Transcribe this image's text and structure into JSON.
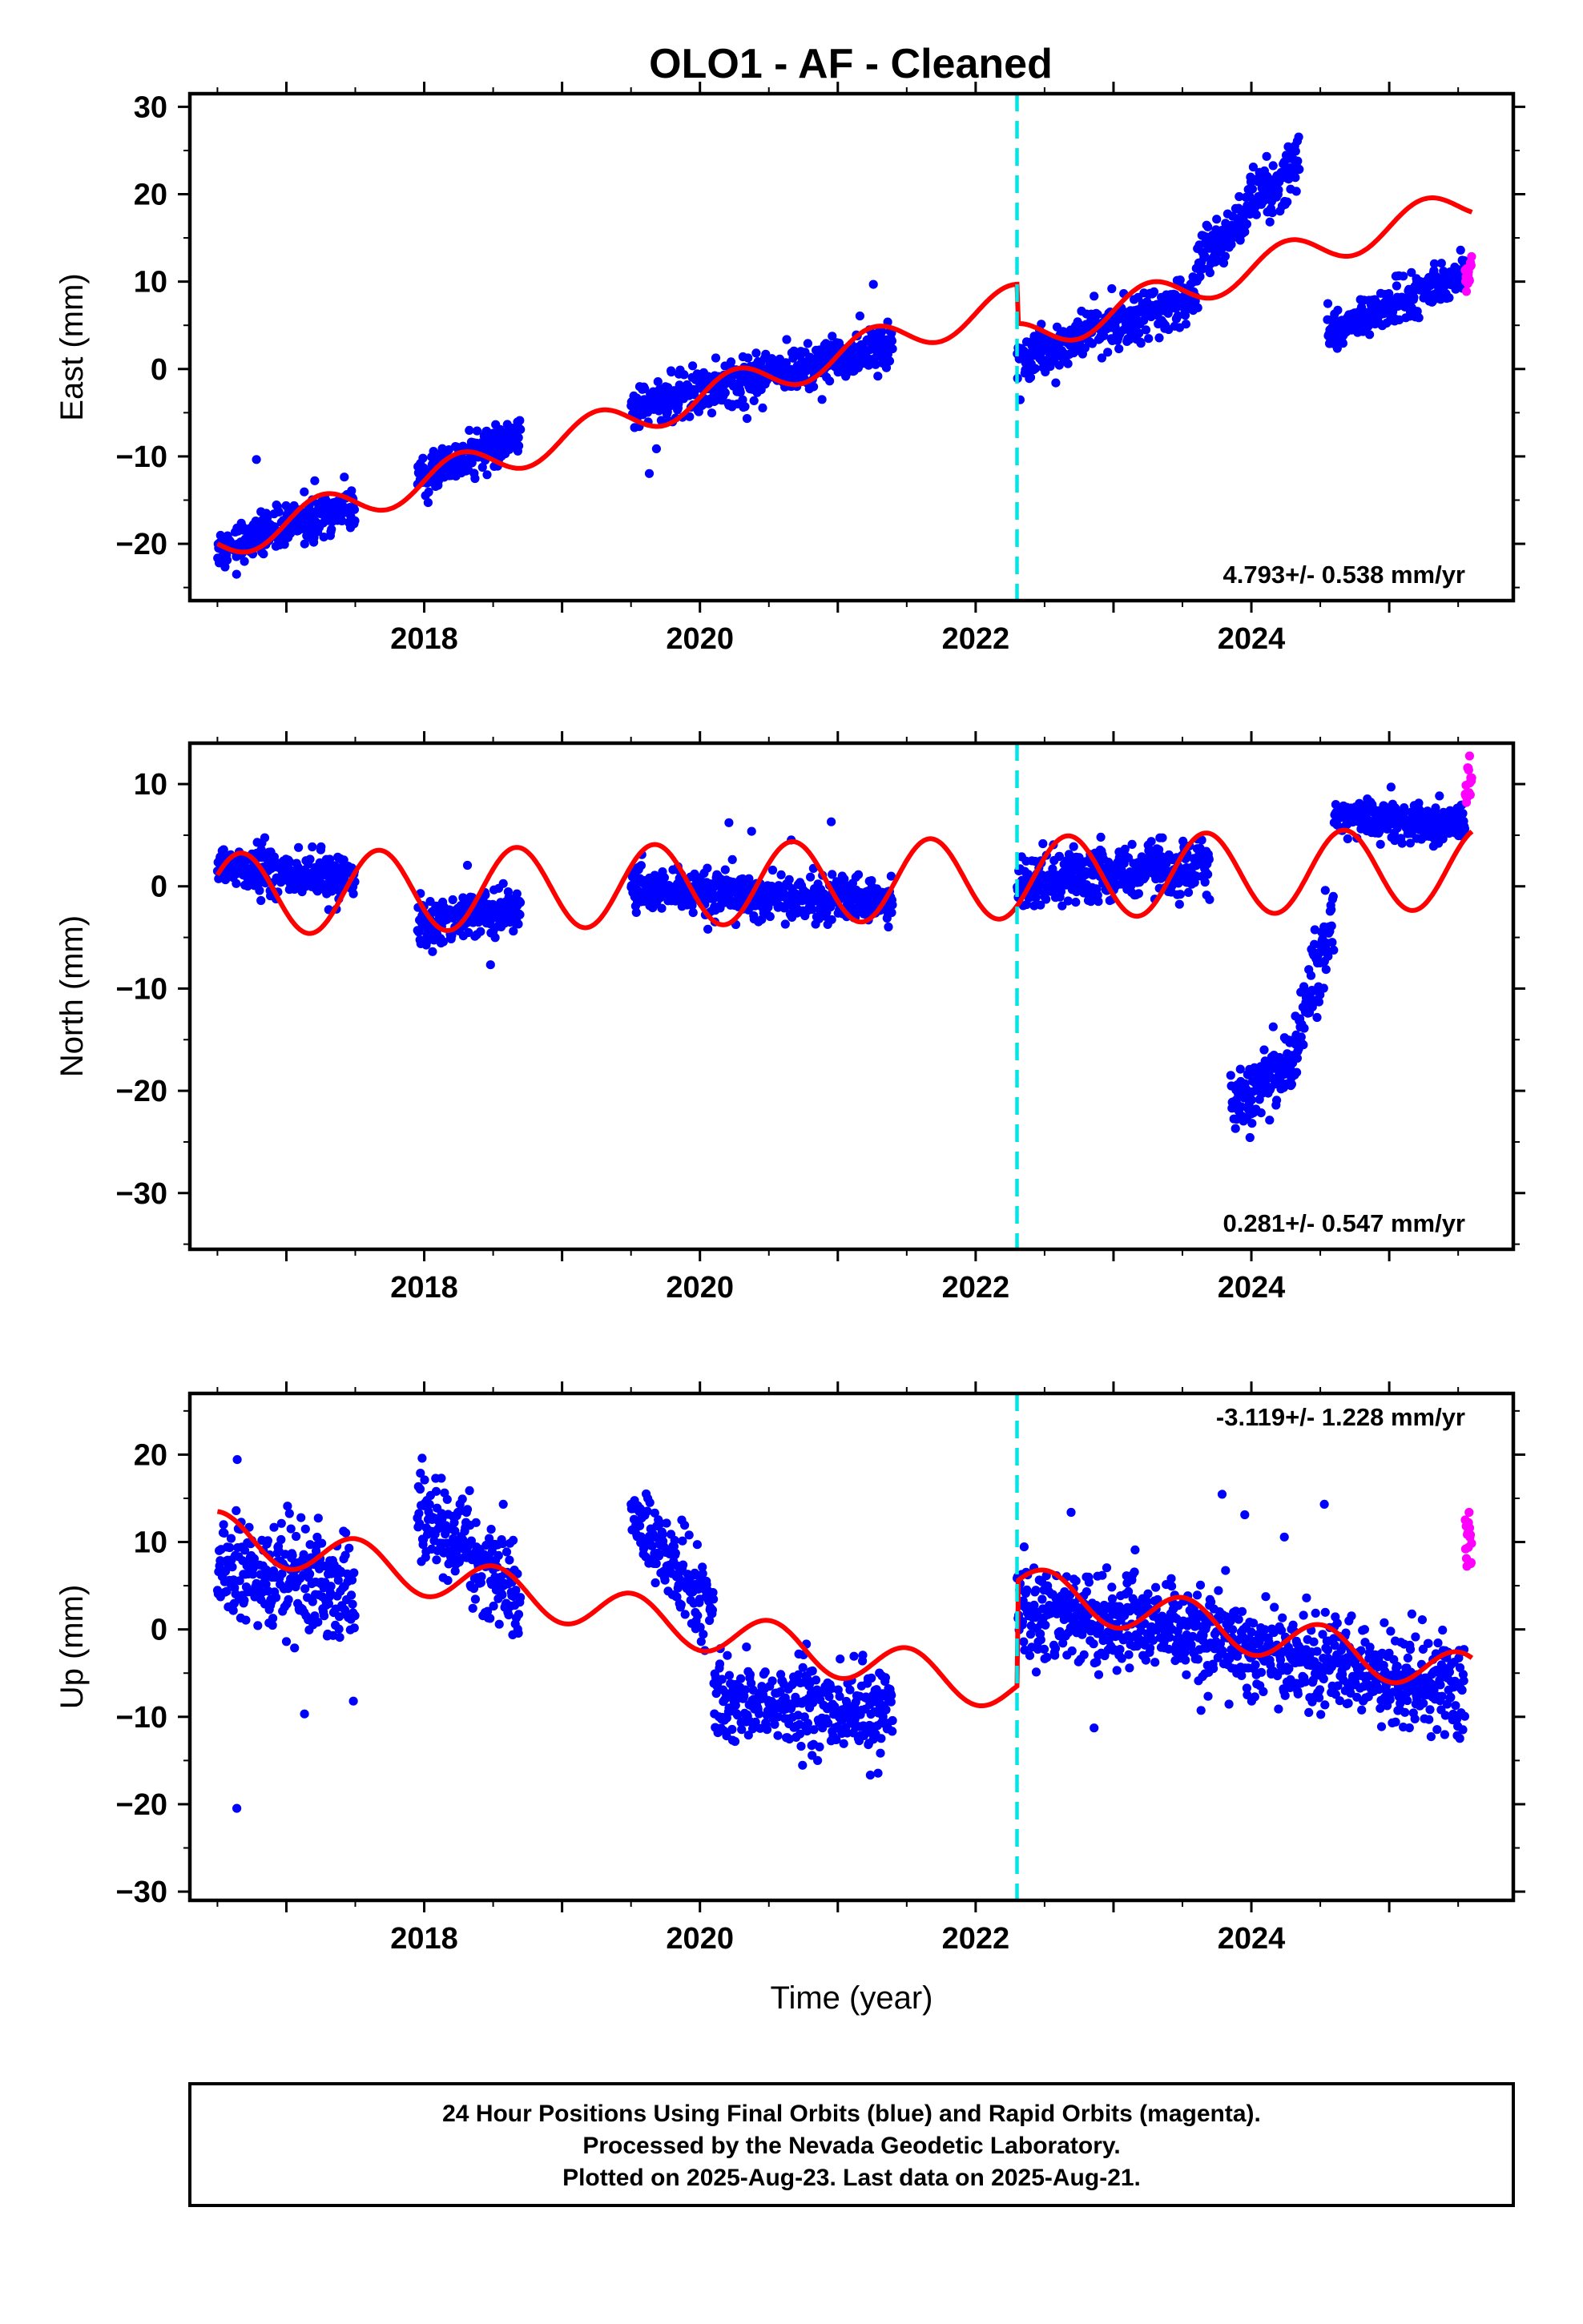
{
  "title": "OLO1  - AF - Cleaned",
  "footer": {
    "lines": [
      "24 Hour Positions Using Final Orbits (blue) and Rapid Orbits (magenta).",
      "Processed by the Nevada Geodetic Laboratory.",
      "Plotted on 2025-Aug-23. Last data on 2025-Aug-21."
    ]
  },
  "colors": {
    "final_points": "#0000ff",
    "rapid_points": "#ff00ff",
    "model_line": "#ff0000",
    "event_line": "#00e5e5",
    "frame": "#000000"
  },
  "chart_data": [
    {
      "type": "scatter",
      "id": "east",
      "ylabel": "East (mm)",
      "xlim": [
        2016.3,
        2025.9
      ],
      "ylim": [
        -26.5,
        31.5
      ],
      "xticks": [
        2018,
        2020,
        2022,
        2024
      ],
      "xminor": [
        2017,
        2019,
        2021,
        2023,
        2025
      ],
      "yticks": [
        -20,
        -10,
        0,
        10,
        20,
        30
      ],
      "event_x": 2022.3,
      "rate_text": "4.793+/- 0.538 mm/yr",
      "rate_position": "bottom-right",
      "series": [
        {
          "role": "final",
          "segments": [
            {
              "x": [
                2016.5,
                2017.5
              ],
              "y": [
                -20.5,
                -15.5
              ],
              "spread": 2.0
            },
            {
              "x": [
                2017.95,
                2018.7
              ],
              "y": [
                -12.5,
                -7.5
              ],
              "spread": 1.8
            },
            {
              "x": [
                2019.5,
                2021.4
              ],
              "y": [
                -4.5,
                2.5
              ],
              "spread": 2.3
            },
            {
              "x": [
                2022.3,
                2023.6
              ],
              "y": [
                1.0,
                8.5
              ],
              "spread": 2.3
            },
            {
              "x": [
                2023.6,
                2024.35
              ],
              "y": [
                12.0,
                24.0
              ],
              "spread": 3.0
            },
            {
              "x": [
                2024.55,
                2025.55
              ],
              "y": [
                4.0,
                11.0
              ],
              "spread": 2.0
            }
          ]
        },
        {
          "role": "rapid",
          "segments": [
            {
              "x": [
                2025.55,
                2025.6
              ],
              "y": [
                10.0,
                12.5
              ],
              "spread": 2.5
            }
          ]
        }
      ],
      "model": {
        "x0": 2016.5,
        "offset": -20.0,
        "rate": 4.793,
        "annual_amp": 2.0,
        "annual_phase": 3.14,
        "steps": [
          {
            "x": 2022.3,
            "dy": -4.5
          }
        ]
      }
    },
    {
      "type": "scatter",
      "id": "north",
      "ylabel": "North (mm)",
      "xlim": [
        2016.3,
        2025.9
      ],
      "ylim": [
        -35.5,
        14.0
      ],
      "xticks": [
        2018,
        2020,
        2022,
        2024
      ],
      "xminor": [
        2017,
        2019,
        2021,
        2023,
        2025
      ],
      "yticks": [
        -30,
        -20,
        -10,
        0,
        10
      ],
      "event_x": 2022.3,
      "rate_text": "0.281+/- 0.547 mm/yr",
      "rate_position": "bottom-right",
      "series": [
        {
          "role": "final",
          "segments": [
            {
              "x": [
                2016.5,
                2017.5
              ],
              "y": [
                2.0,
                0.5
              ],
              "spread": 2.0
            },
            {
              "x": [
                2017.95,
                2018.7
              ],
              "y": [
                -3.5,
                -2.0
              ],
              "spread": 2.0
            },
            {
              "x": [
                2019.5,
                2021.4
              ],
              "y": [
                -0.5,
                -1.5
              ],
              "spread": 2.0
            },
            {
              "x": [
                2022.3,
                2023.7
              ],
              "y": [
                0.5,
                2.0
              ],
              "spread": 2.2
            },
            {
              "x": [
                2023.85,
                2024.35
              ],
              "y": [
                -22.0,
                -16.0
              ],
              "spread": 3.0
            },
            {
              "x": [
                2024.35,
                2024.6
              ],
              "y": [
                -14.0,
                -2.0
              ],
              "spread": 3.5
            },
            {
              "x": [
                2024.6,
                2025.55
              ],
              "y": [
                7.0,
                6.0
              ],
              "spread": 1.8
            }
          ]
        },
        {
          "role": "rapid",
          "segments": [
            {
              "x": [
                2025.55,
                2025.6
              ],
              "y": [
                9.0,
                11.0
              ],
              "spread": 2.5
            }
          ]
        }
      ],
      "model": {
        "x0": 2016.5,
        "offset": -0.8,
        "rate": 0.281,
        "annual_amp": 4.0,
        "annual_phase": 0.5,
        "steps": []
      }
    },
    {
      "type": "scatter",
      "id": "up",
      "ylabel": "Up (mm)",
      "xlabel": "Time (year)",
      "xlim": [
        2016.3,
        2025.9
      ],
      "ylim": [
        -31.0,
        27.0
      ],
      "xticks": [
        2018,
        2020,
        2022,
        2024
      ],
      "xminor": [
        2017,
        2019,
        2021,
        2023,
        2025
      ],
      "yticks": [
        -30,
        -20,
        -10,
        0,
        10,
        20
      ],
      "event_x": 2022.3,
      "rate_text": "-3.119+/- 1.228 mm/yr",
      "rate_position": "top-right",
      "series": [
        {
          "role": "final",
          "segments": [
            {
              "x": [
                2016.5,
                2017.5
              ],
              "y": [
                7.0,
                5.0
              ],
              "spread": 5.5
            },
            {
              "x": [
                2017.95,
                2018.7
              ],
              "y": [
                14.0,
                4.0
              ],
              "spread": 5.0
            },
            {
              "x": [
                2019.5,
                2020.1
              ],
              "y": [
                13.0,
                2.0
              ],
              "spread": 4.0
            },
            {
              "x": [
                2020.1,
                2021.4
              ],
              "y": [
                -8.0,
                -10.0
              ],
              "spread": 4.5
            },
            {
              "x": [
                2022.3,
                2025.55
              ],
              "y": [
                3.0,
                -7.0
              ],
              "spread": 4.8
            }
          ]
        },
        {
          "role": "rapid",
          "segments": [
            {
              "x": [
                2025.55,
                2025.6
              ],
              "y": [
                11.0,
                8.0
              ],
              "spread": 2.5
            }
          ]
        }
      ],
      "model": {
        "x0": 2016.5,
        "offset": 11.0,
        "rate": -3.119,
        "annual_amp": 2.5,
        "annual_phase": 1.5,
        "steps": [
          {
            "x": 2022.3,
            "dy": 12.0
          }
        ]
      }
    }
  ]
}
